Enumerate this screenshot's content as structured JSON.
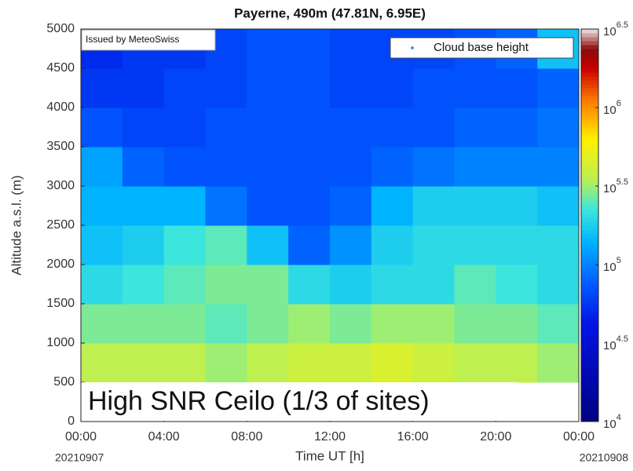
{
  "chart_data": {
    "type": "heatmap",
    "title": "Payerne, 490m (47.81N, 6.95E)",
    "xlabel": "Time UT [h]",
    "ylabel": "Altitude a.s.l. (m)",
    "xlim": [
      0,
      24
    ],
    "xticks": [
      {
        "value": 0,
        "label": "00:00"
      },
      {
        "value": 4,
        "label": "04:00"
      },
      {
        "value": 8,
        "label": "08:00"
      },
      {
        "value": 12,
        "label": "12:00"
      },
      {
        "value": 16,
        "label": "16:00"
      },
      {
        "value": 20,
        "label": "20:00"
      },
      {
        "value": 24,
        "label": "00:00"
      }
    ],
    "ylim": [
      0,
      5000
    ],
    "yticks": [
      0,
      500,
      1000,
      1500,
      2000,
      2500,
      3000,
      3500,
      4000,
      4500,
      5000
    ],
    "start_date": "20210907",
    "end_date": "20210908",
    "issuer": "Issued by MeteoSwiss",
    "annotation": "High SNR Ceilo (1/3 of sites)",
    "legend": {
      "label": "Cloud base height",
      "color": "#2a7fd0",
      "position": "upper right"
    },
    "zlim": [
      4,
      6.5
    ],
    "zticks": [
      {
        "value": 4,
        "label": "10^4"
      },
      {
        "value": 4.5,
        "label": "10^4.5"
      },
      {
        "value": 5,
        "label": "10^5"
      },
      {
        "value": 5.5,
        "label": "10^5.5"
      },
      {
        "value": 6,
        "label": "10^6"
      },
      {
        "value": 6.5,
        "label": "10^6.5"
      }
    ],
    "x_bins": [
      0,
      2,
      4,
      6,
      8,
      10,
      12,
      14,
      16,
      18,
      20,
      22,
      24
    ],
    "y_bins": [
      0,
      500,
      1000,
      1500,
      2000,
      2500,
      3000,
      3500,
      4000,
      4500,
      5000
    ],
    "z": [
      [
        null,
        null,
        null,
        null,
        null,
        null,
        null,
        null,
        null,
        null,
        null,
        null
      ],
      [
        5.55,
        5.55,
        5.55,
        5.5,
        5.55,
        5.6,
        5.6,
        5.65,
        5.6,
        5.55,
        5.55,
        5.5
      ],
      [
        5.45,
        5.45,
        5.45,
        5.4,
        5.45,
        5.5,
        5.45,
        5.5,
        5.5,
        5.45,
        5.45,
        5.4
      ],
      [
        5.3,
        5.35,
        5.4,
        5.45,
        5.45,
        5.3,
        5.25,
        5.3,
        5.3,
        5.4,
        5.35,
        5.3
      ],
      [
        5.2,
        5.25,
        5.35,
        5.4,
        5.2,
        4.9,
        5.05,
        5.25,
        5.3,
        5.3,
        5.3,
        5.3
      ],
      [
        5.15,
        5.15,
        5.15,
        4.95,
        4.85,
        4.85,
        4.9,
        5.15,
        5.25,
        5.25,
        5.25,
        5.2
      ],
      [
        5.1,
        4.9,
        4.85,
        4.85,
        4.85,
        4.85,
        4.85,
        4.9,
        4.95,
        5.0,
        5.0,
        5.0
      ],
      [
        4.85,
        4.8,
        4.8,
        4.85,
        4.85,
        4.85,
        4.85,
        4.85,
        4.85,
        4.9,
        4.9,
        4.95
      ],
      [
        4.75,
        4.75,
        4.8,
        4.8,
        4.85,
        4.85,
        4.8,
        4.8,
        4.85,
        4.85,
        4.85,
        4.9
      ],
      [
        4.7,
        4.75,
        4.75,
        4.8,
        4.85,
        4.85,
        4.8,
        4.8,
        4.8,
        4.85,
        4.9,
        5.2
      ]
    ]
  }
}
